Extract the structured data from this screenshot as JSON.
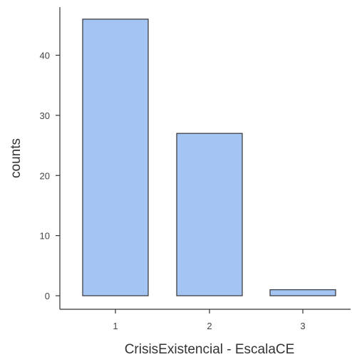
{
  "chart_data": {
    "type": "bar",
    "categories": [
      "1",
      "2",
      "3"
    ],
    "values": [
      46,
      27,
      1
    ],
    "xlabel": "CrisisExistencial - EscalaCE",
    "ylabel": "counts",
    "ylim": [
      0,
      50
    ],
    "yticks": [
      0,
      10,
      20,
      30,
      40
    ],
    "grid": false,
    "colors": {
      "bar_fill": "#a4c4f3",
      "bar_stroke": "#333333",
      "axis": "#333333"
    }
  }
}
